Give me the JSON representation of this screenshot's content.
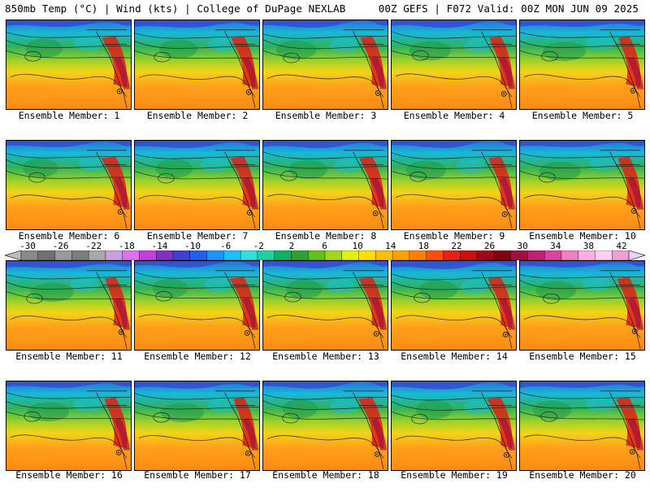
{
  "header": {
    "left": "850mb Temp (°C) | Wind (kts) | College of DuPage NEXLAB",
    "right": "00Z GEFS | F072 Valid: 00Z MON JUN 09 2025"
  },
  "colorbar": {
    "labels": [
      "-30",
      "-26",
      "-22",
      "-18",
      "-14",
      "-10",
      "-6",
      "-2",
      "2",
      "6",
      "10",
      "14",
      "18",
      "22",
      "26",
      "30",
      "34",
      "38",
      "42"
    ],
    "colors": [
      "#8a8a8a",
      "#707070",
      "#9a9a9a",
      "#7d7d7d",
      "#a8a8a8",
      "#c8a0e0",
      "#e070f0",
      "#c040e0",
      "#8030c0",
      "#4040d0",
      "#2060f0",
      "#2090ff",
      "#20c0ff",
      "#30e0e0",
      "#20d0a0",
      "#10b060",
      "#30a030",
      "#60c020",
      "#a0d820",
      "#e0f010",
      "#ffe000",
      "#ffc000",
      "#ffa000",
      "#ff8000",
      "#ff5000",
      "#e82010",
      "#c81010",
      "#a00818",
      "#800010",
      "#a01040",
      "#c02070",
      "#e040a0",
      "#f080c0",
      "#ffb0e0",
      "#ffd0f0",
      "#f0a0d0"
    ]
  },
  "members": [
    {
      "label": "Ensemble Member: 1"
    },
    {
      "label": "Ensemble Member: 2"
    },
    {
      "label": "Ensemble Member: 3"
    },
    {
      "label": "Ensemble Member: 4"
    },
    {
      "label": "Ensemble Member: 5"
    },
    {
      "label": "Ensemble Member: 6"
    },
    {
      "label": "Ensemble Member: 7"
    },
    {
      "label": "Ensemble Member: 8"
    },
    {
      "label": "Ensemble Member: 9"
    },
    {
      "label": "Ensemble Member: 10"
    },
    {
      "label": "Ensemble Member: 11"
    },
    {
      "label": "Ensemble Member: 12"
    },
    {
      "label": "Ensemble Member: 13"
    },
    {
      "label": "Ensemble Member: 14"
    },
    {
      "label": "Ensemble Member: 15"
    },
    {
      "label": "Ensemble Member: 16"
    },
    {
      "label": "Ensemble Member: 17"
    },
    {
      "label": "Ensemble Member: 18"
    },
    {
      "label": "Ensemble Member: 19"
    },
    {
      "label": "Ensemble Member: 20"
    }
  ]
}
